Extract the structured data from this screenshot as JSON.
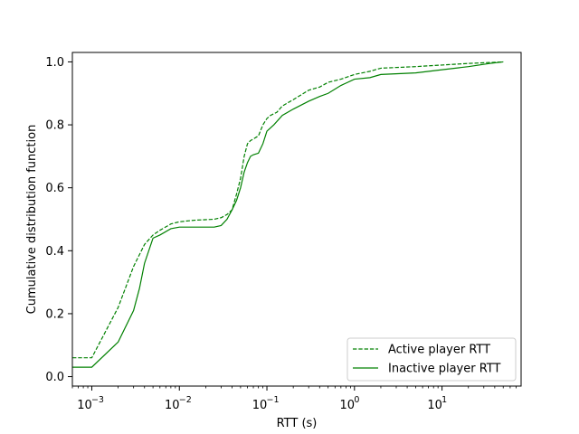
{
  "chart_data": {
    "type": "line",
    "title": "",
    "xlabel": "RTT (s)",
    "ylabel": "Cumulative distribution function",
    "xscale": "log",
    "xlim": [
      0.0006,
      80
    ],
    "ylim": [
      -0.03,
      1.03
    ],
    "grid": false,
    "legend_position": "lower-right",
    "x_ticks": [
      {
        "label_base": "10",
        "label_exp": "−3",
        "value": 0.001
      },
      {
        "label_base": "10",
        "label_exp": "−2",
        "value": 0.01
      },
      {
        "label_base": "10",
        "label_exp": "−1",
        "value": 0.1
      },
      {
        "label_base": "10",
        "label_exp": "0",
        "value": 1
      },
      {
        "label_base": "10",
        "label_exp": "1",
        "value": 10
      }
    ],
    "y_ticks": [
      {
        "label": "0.0",
        "value": 0.0
      },
      {
        "label": "0.2",
        "value": 0.2
      },
      {
        "label": "0.4",
        "value": 0.4
      },
      {
        "label": "0.6",
        "value": 0.6
      },
      {
        "label": "0.8",
        "value": 0.8
      },
      {
        "label": "1.0",
        "value": 1.0
      }
    ],
    "series": [
      {
        "name": "Active player RTT",
        "color": "#008000",
        "dash": "dashed",
        "points": [
          [
            0.0006,
            0.06
          ],
          [
            0.001,
            0.06
          ],
          [
            0.002,
            0.22
          ],
          [
            0.003,
            0.35
          ],
          [
            0.004,
            0.42
          ],
          [
            0.005,
            0.45
          ],
          [
            0.006,
            0.465
          ],
          [
            0.008,
            0.485
          ],
          [
            0.01,
            0.492
          ],
          [
            0.015,
            0.497
          ],
          [
            0.025,
            0.5
          ],
          [
            0.03,
            0.505
          ],
          [
            0.035,
            0.515
          ],
          [
            0.04,
            0.53
          ],
          [
            0.045,
            0.58
          ],
          [
            0.05,
            0.63
          ],
          [
            0.055,
            0.7
          ],
          [
            0.06,
            0.74
          ],
          [
            0.065,
            0.75
          ],
          [
            0.07,
            0.755
          ],
          [
            0.08,
            0.765
          ],
          [
            0.09,
            0.8
          ],
          [
            0.1,
            0.82
          ],
          [
            0.11,
            0.83
          ],
          [
            0.13,
            0.84
          ],
          [
            0.15,
            0.86
          ],
          [
            0.2,
            0.88
          ],
          [
            0.3,
            0.91
          ],
          [
            0.4,
            0.92
          ],
          [
            0.5,
            0.935
          ],
          [
            0.7,
            0.945
          ],
          [
            1.0,
            0.96
          ],
          [
            1.5,
            0.97
          ],
          [
            2.0,
            0.98
          ],
          [
            5.0,
            0.985
          ],
          [
            10,
            0.99
          ],
          [
            20,
            0.995
          ],
          [
            35,
            0.998
          ],
          [
            50,
            1.0
          ]
        ]
      },
      {
        "name": "Inactive player RTT",
        "color": "#008000",
        "dash": "solid",
        "points": [
          [
            0.0006,
            0.03
          ],
          [
            0.001,
            0.03
          ],
          [
            0.002,
            0.11
          ],
          [
            0.003,
            0.21
          ],
          [
            0.0035,
            0.28
          ],
          [
            0.004,
            0.36
          ],
          [
            0.005,
            0.44
          ],
          [
            0.006,
            0.45
          ],
          [
            0.008,
            0.47
          ],
          [
            0.01,
            0.475
          ],
          [
            0.015,
            0.475
          ],
          [
            0.025,
            0.475
          ],
          [
            0.03,
            0.48
          ],
          [
            0.035,
            0.5
          ],
          [
            0.04,
            0.53
          ],
          [
            0.045,
            0.56
          ],
          [
            0.05,
            0.6
          ],
          [
            0.055,
            0.65
          ],
          [
            0.06,
            0.68
          ],
          [
            0.065,
            0.7
          ],
          [
            0.07,
            0.705
          ],
          [
            0.08,
            0.71
          ],
          [
            0.09,
            0.74
          ],
          [
            0.1,
            0.78
          ],
          [
            0.12,
            0.8
          ],
          [
            0.15,
            0.83
          ],
          [
            0.2,
            0.85
          ],
          [
            0.3,
            0.875
          ],
          [
            0.4,
            0.89
          ],
          [
            0.5,
            0.9
          ],
          [
            0.7,
            0.925
          ],
          [
            1.0,
            0.945
          ],
          [
            1.5,
            0.95
          ],
          [
            2.0,
            0.96
          ],
          [
            5.0,
            0.965
          ],
          [
            10,
            0.975
          ],
          [
            20,
            0.985
          ],
          [
            35,
            0.995
          ],
          [
            50,
            1.0
          ]
        ]
      }
    ]
  }
}
